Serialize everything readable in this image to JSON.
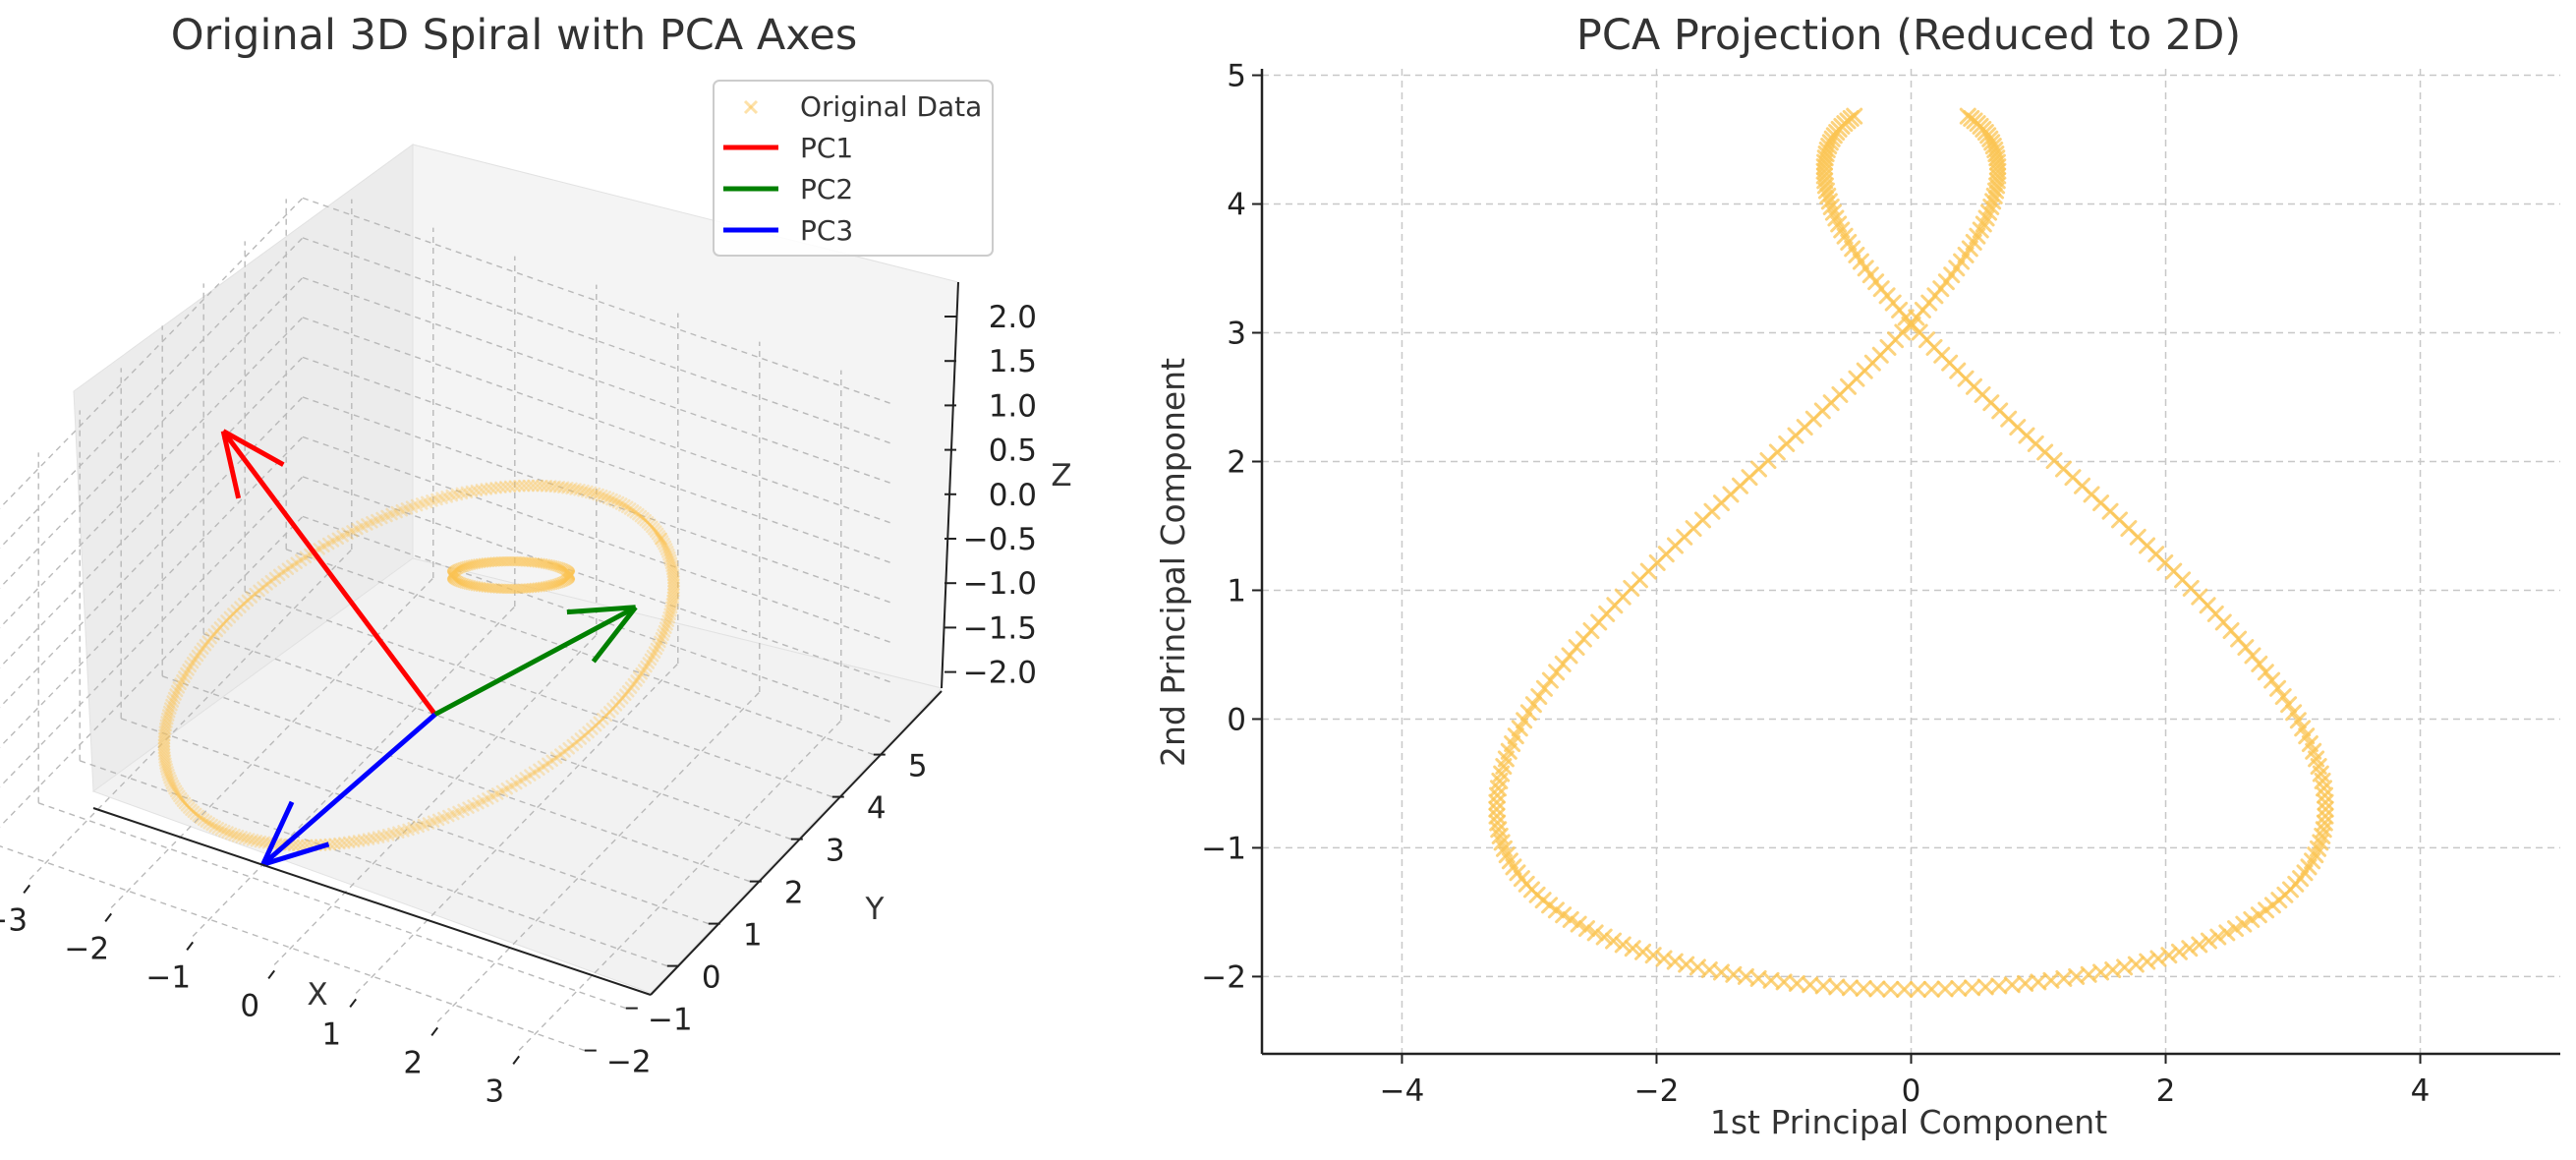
{
  "colors": {
    "spiral": "#fbc453",
    "pc1": "#ff0000",
    "pc2": "#008000",
    "pc3": "#0000ff",
    "grid": "#c8c8c8",
    "text": "#333333",
    "pane": "#ececec",
    "pane_light": "#f5f5f5"
  },
  "chart_data": [
    {
      "type": "scatter",
      "projection": "3d",
      "title": "Original 3D Spiral with PCA Axes",
      "xlabel": "X",
      "ylabel": "Y",
      "zlabel": "Z",
      "xticks": [
        "−3",
        "−2",
        "−1",
        "0",
        "1",
        "2",
        "3"
      ],
      "yticks": [
        "−2",
        "−1",
        "0",
        "1",
        "2",
        "3",
        "4",
        "5"
      ],
      "zticks": [
        "2.0",
        "1.5",
        "1.0",
        "0.5",
        "0.0",
        "−0.5",
        "−1.0",
        "−1.5",
        "−2.0"
      ],
      "xlim": [
        -3.6,
        3.6
      ],
      "ylim": [
        -2.4,
        5.4
      ],
      "zlim": [
        -2.2,
        2.2
      ],
      "legend_position": "top-right",
      "legend": [
        "Original Data",
        "PC1",
        "PC2",
        "PC3"
      ],
      "series": [
        {
          "name": "Original Data",
          "marker": "x",
          "alpha": 0.35,
          "parametric": "spiral z=cos(t)",
          "points": 300
        },
        {
          "name": "PC1",
          "kind": "arrow",
          "from": [
            0.3,
            0.9,
            -0.7
          ],
          "to": [
            -2.6,
            1.5,
            1.5
          ]
        },
        {
          "name": "PC2",
          "kind": "arrow",
          "from": [
            0.3,
            0.9,
            -0.7
          ],
          "to": [
            2.1,
            2.2,
            0.6
          ]
        },
        {
          "name": "PC3",
          "kind": "arrow",
          "from": [
            0.3,
            0.9,
            -0.7
          ],
          "to": [
            -1.0,
            -0.7,
            -2.2
          ]
        }
      ]
    },
    {
      "type": "scatter",
      "title": "PCA Projection (Reduced to 2D)",
      "xlabel": "1st Principal Component",
      "ylabel": "2nd Principal Component",
      "xlim": [
        -5.1,
        5.1
      ],
      "ylim": [
        -2.6,
        5.05
      ],
      "xticks": [
        -4,
        -2,
        0,
        2,
        4
      ],
      "yticks": [
        -2,
        -1,
        0,
        1,
        2,
        3,
        4,
        5
      ],
      "grid": true,
      "series": [
        {
          "name": "Original Data",
          "marker": "x",
          "alpha": 0.75,
          "parametric": "x=1.85*(sin t - sin 2t), y=1.35 + 3.45*cos t",
          "t_range_deg": [
            15,
            345
          ],
          "points": 300
        }
      ]
    }
  ]
}
